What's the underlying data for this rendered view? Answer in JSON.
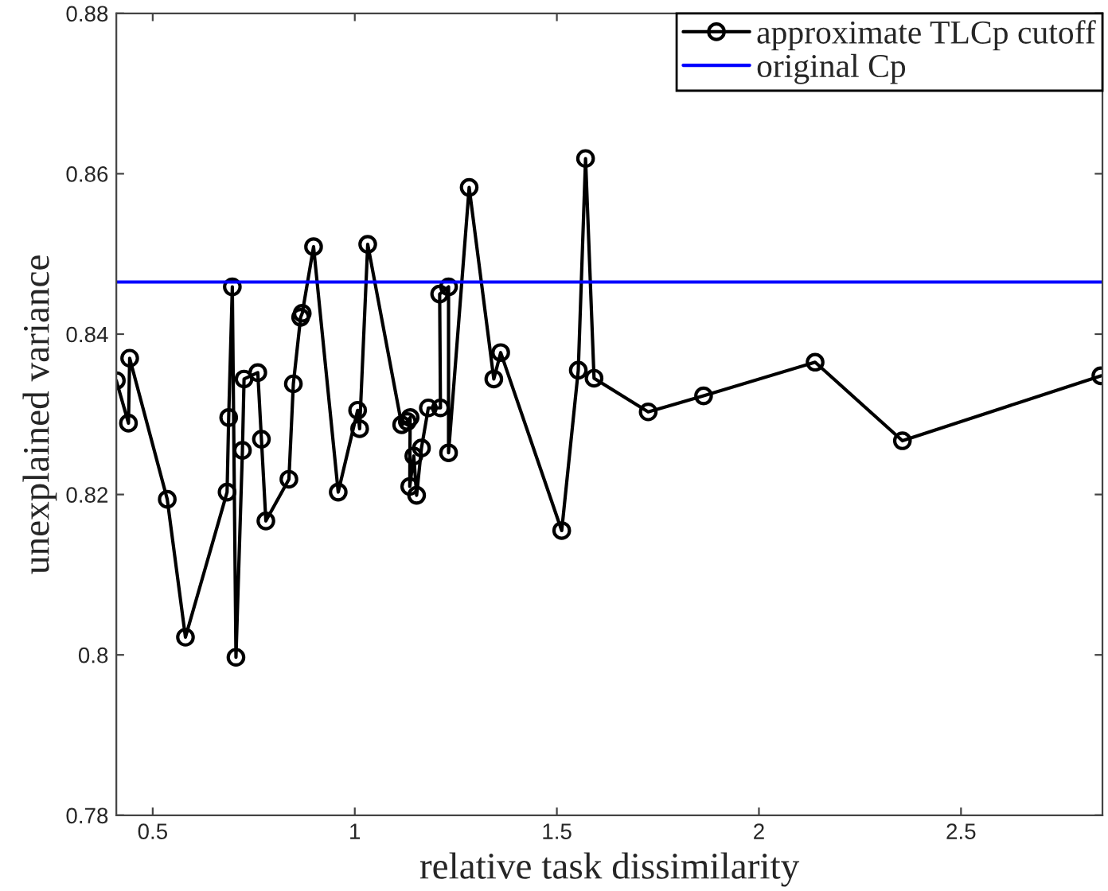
{
  "chart_data": {
    "type": "line",
    "xlabel": "relative task dissimilarity",
    "ylabel": "unexplained variance",
    "series": [
      {
        "name": "approximate TLCp cutoff",
        "color": "#000000",
        "marker": "circle",
        "line_style": "solid",
        "x": [
          0.41,
          0.44,
          0.443,
          0.536,
          0.581,
          0.684,
          0.688,
          0.697,
          0.706,
          0.722,
          0.726,
          0.76,
          0.769,
          0.78,
          0.837,
          0.848,
          0.866,
          0.87,
          0.898,
          0.959,
          1.007,
          1.012,
          1.032,
          1.116,
          1.13,
          1.137,
          1.136,
          1.146,
          1.153,
          1.165,
          1.182,
          1.212,
          1.21,
          1.232,
          1.232,
          1.283,
          1.344,
          1.361,
          1.512,
          1.553,
          1.571,
          1.592,
          1.726,
          1.863,
          2.139,
          2.355,
          2.846
        ],
        "values": [
          0.8342,
          0.8289,
          0.837,
          0.8194,
          0.8022,
          0.8203,
          0.8296,
          0.8459,
          0.7997,
          0.8255,
          0.8344,
          0.8352,
          0.8269,
          0.8167,
          0.8219,
          0.8338,
          0.8421,
          0.8426,
          0.8509,
          0.8203,
          0.8305,
          0.8282,
          0.8512,
          0.8287,
          0.8291,
          0.8296,
          0.821,
          0.8248,
          0.8199,
          0.8258,
          0.8308,
          0.8308,
          0.845,
          0.8459,
          0.8252,
          0.8583,
          0.8344,
          0.8377,
          0.8155,
          0.8355,
          0.8619,
          0.8345,
          0.8303,
          0.8323,
          0.8365,
          0.8267,
          0.8348
        ]
      }
    ],
    "ref_lines": [
      {
        "axis": "y",
        "value": 0.8465,
        "label": "original Cp",
        "color": "#0000ff",
        "line_style": "solid"
      }
    ],
    "xlim": [
      0.41,
      2.85
    ],
    "ylim": [
      0.78,
      0.88
    ],
    "xticks": [
      0.5,
      1,
      1.5,
      2,
      2.5
    ],
    "yticks": [
      0.78,
      {
        "value": 0.8,
        "label": "0.8"
      },
      0.82,
      0.84,
      0.86,
      0.88
    ],
    "grid": false,
    "legend": "top right"
  }
}
